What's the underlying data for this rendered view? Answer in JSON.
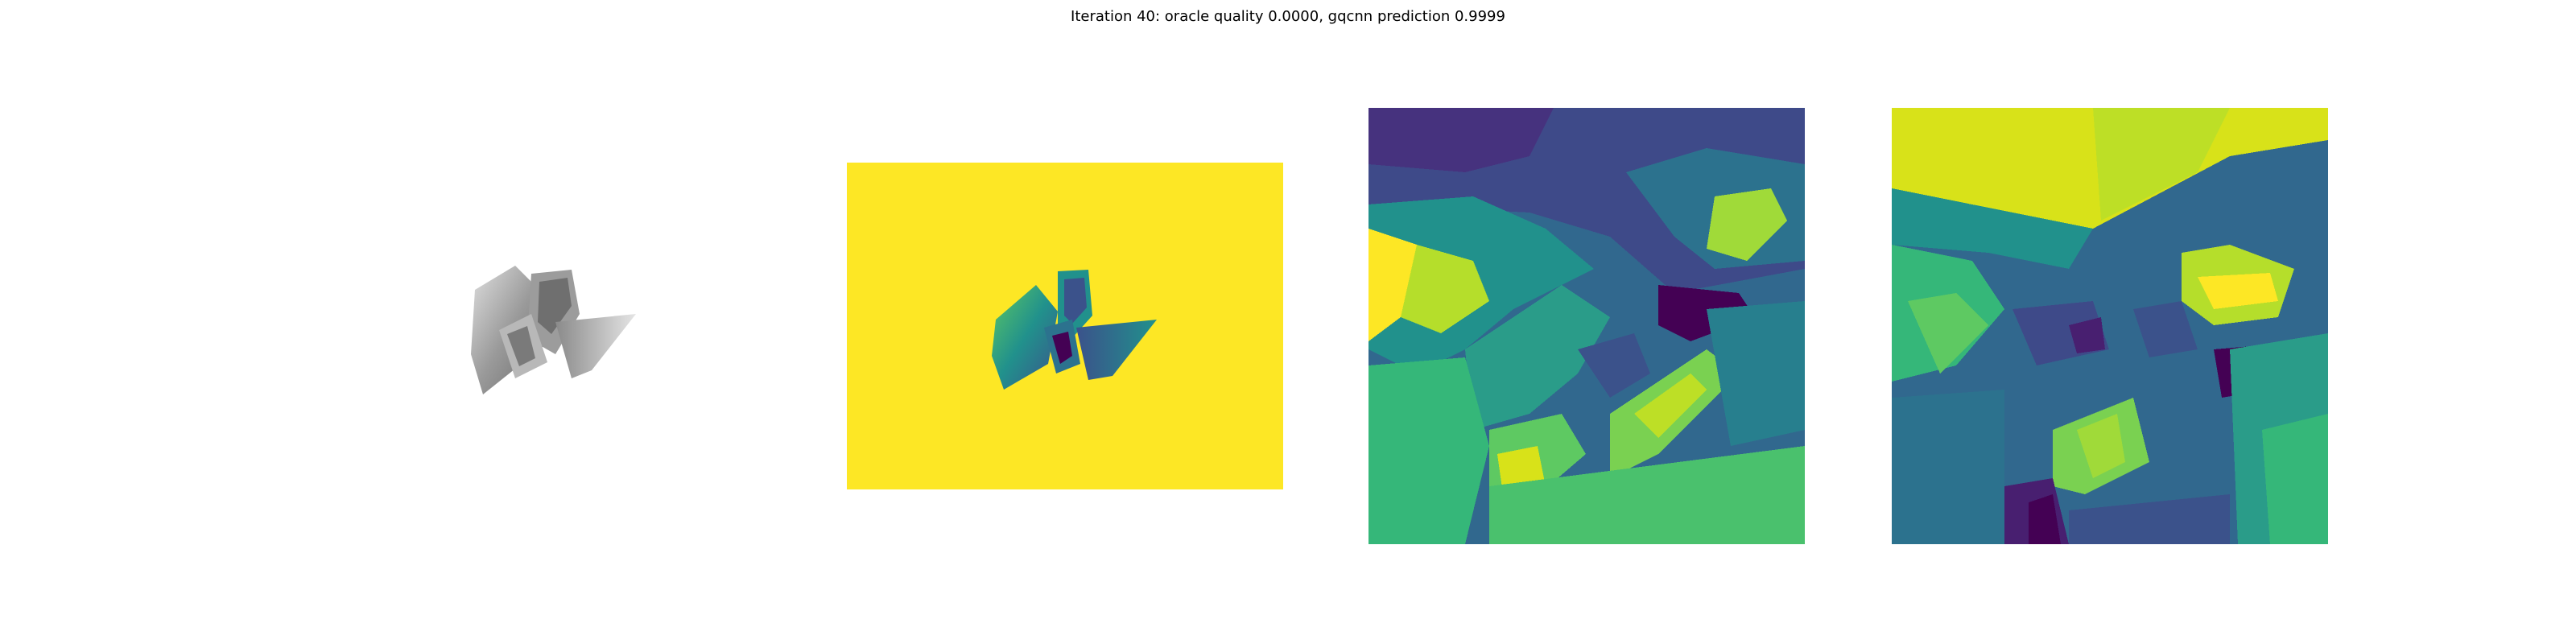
{
  "figure": {
    "title": "Iteration 40: oracle quality 0.0000, gqcnn prediction 0.9999"
  },
  "panels": [
    {
      "name": "rendered-object",
      "colormap": "gray"
    },
    {
      "name": "depth-image",
      "colormap": "viridis"
    },
    {
      "name": "gqcnn-crop-1",
      "colormap": "viridis"
    },
    {
      "name": "gqcnn-crop-2",
      "colormap": "viridis"
    }
  ],
  "colors": {
    "viridis_dark": "#440154",
    "viridis_blue": "#3b528b",
    "viridis_teal": "#21918c",
    "viridis_green": "#5ec962",
    "viridis_yellow": "#fde725",
    "gray_light": "#d9d9d9",
    "gray_mid": "#a0a0a0",
    "gray_dark": "#555555"
  }
}
